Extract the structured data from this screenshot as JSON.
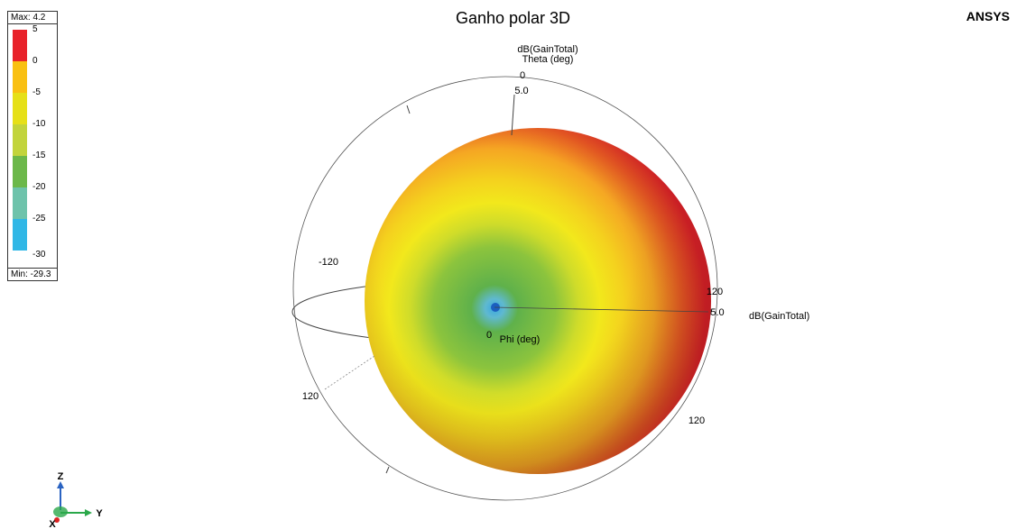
{
  "title": "Ganho polar 3D",
  "brand": "ANSYS",
  "legend": {
    "max_label": "Max: 4.2",
    "min_label": "Min: -29.3",
    "ticks": [
      "5",
      "0",
      "-5",
      "-10",
      "-15",
      "-20",
      "-25",
      "-30"
    ],
    "colors": [
      "#e8222a",
      "#f9c012",
      "#e6e018",
      "#c2d43c",
      "#6cb84a",
      "#6ec3ab",
      "#30b7e6",
      "#2e4ea3"
    ]
  },
  "axes": {
    "top_quantity": "dB(GainTotal)",
    "top_theta": "Theta (deg)",
    "top_zero": "0",
    "top_radius": "5.0",
    "left_120": "-120",
    "right_120": "120",
    "right_radius": "5.0",
    "right_quantity": "dB(GainTotal)",
    "phi_zero": "0",
    "phi_label": "Phi (deg)",
    "lower_left_120": "120",
    "lower_right_120": "120"
  },
  "triad": {
    "z": "Z",
    "y": "Y",
    "x": "X"
  },
  "chart_data": {
    "type": "other",
    "title": "Ganho polar 3D",
    "quantity": "dB(GainTotal)",
    "max": 4.2,
    "min": -29.3,
    "colorbar_range": [
      -30,
      5
    ],
    "colorbar_ticks": [
      5,
      0,
      -5,
      -10,
      -15,
      -20,
      -25,
      -30
    ],
    "radial_max": 5.0,
    "theta_label": "Theta (deg)",
    "phi_label": "Phi (deg)"
  }
}
